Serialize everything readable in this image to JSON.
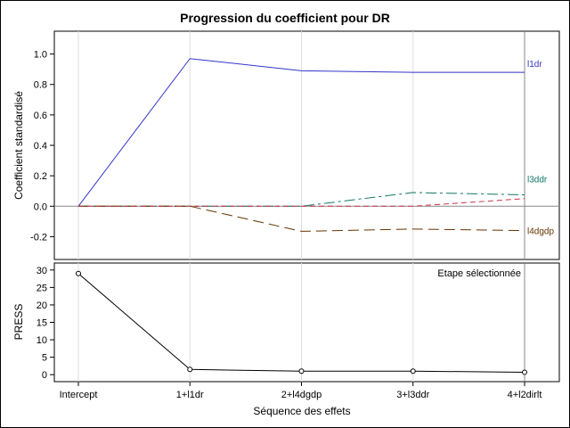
{
  "chart_data": [
    {
      "type": "line",
      "title": "Progression du coefficient pour DR",
      "ylabel": "Coefficient standardisé",
      "ylim": [
        -0.35,
        1.15
      ],
      "yticks": [
        -0.2,
        0.0,
        0.2,
        0.4,
        0.6,
        0.8,
        1.0
      ],
      "ytick_labels": [
        "-0.2",
        "0.0",
        "0.2",
        "0.4",
        "0.6",
        "0.8",
        "1.0"
      ],
      "categories": [
        "Intercept",
        "1+l1dr",
        "2+l4dgdp",
        "3+l3ddr",
        "4+l2dirlt"
      ],
      "selected_step": "4+l2dirlt",
      "grid": "vertical",
      "series": [
        {
          "name": "l1dr",
          "color": "#3333cc",
          "dash": "solid",
          "values": [
            0,
            0.97,
            0.89,
            0.88,
            0.88
          ]
        },
        {
          "name": "l3ddr",
          "color": "#117766",
          "dash": "dashdot",
          "values": [
            0,
            0,
            0,
            0.09,
            0.075
          ]
        },
        {
          "name": "l4dgdp",
          "color": "#663300",
          "dash": "longdash",
          "values": [
            0,
            0,
            -0.165,
            -0.15,
            -0.16
          ]
        },
        {
          "name": "",
          "color": "#cc3344",
          "dash": "dash",
          "values": [
            0,
            0,
            0,
            0,
            0.05
          ]
        }
      ]
    },
    {
      "type": "line",
      "ylabel": "PRESS",
      "xlabel": "Séquence des effets",
      "ylim": [
        -2,
        32
      ],
      "yticks": [
        0,
        5,
        10,
        15,
        20,
        25,
        30
      ],
      "ytick_labels": [
        "0",
        "5",
        "10",
        "15",
        "20",
        "25",
        "30"
      ],
      "categories": [
        "Intercept",
        "1+l1dr",
        "2+l4dgdp",
        "3+l3ddr",
        "4+l2dirlt"
      ],
      "annotation": "Etape sélectionnée",
      "series": [
        {
          "name": "",
          "color": "#000000",
          "markers": true,
          "values": [
            29.0,
            1.5,
            1.0,
            1.0,
            0.7
          ]
        }
      ]
    }
  ]
}
